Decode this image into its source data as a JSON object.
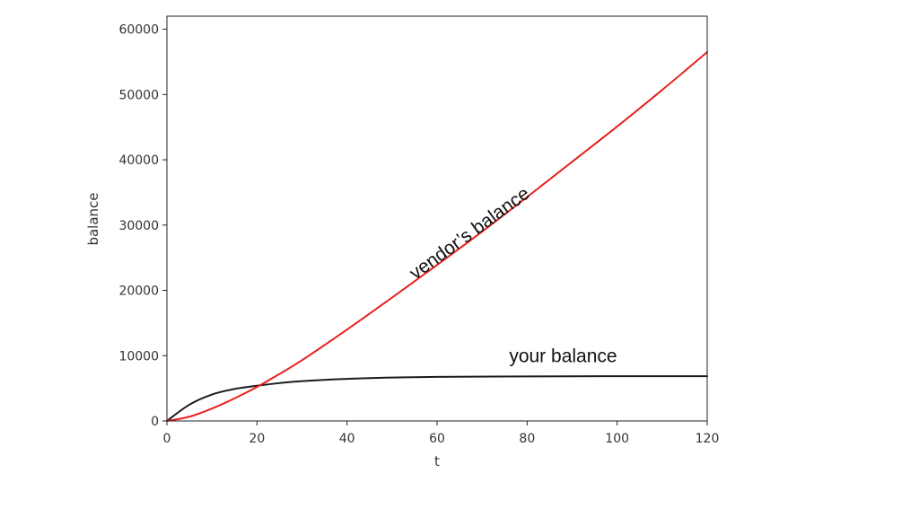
{
  "chart_data": {
    "type": "line",
    "title": "",
    "xlabel": "t",
    "ylabel": "balance",
    "xlim": [
      0,
      120
    ],
    "ylim": [
      0,
      62000
    ],
    "xticks": [
      0,
      20,
      40,
      60,
      80,
      100,
      120
    ],
    "yticks": [
      0,
      10000,
      20000,
      30000,
      40000,
      50000,
      60000
    ],
    "grid": false,
    "legend": "none",
    "series": [
      {
        "name": "your balance",
        "color": "#1a1a1a",
        "x": [
          0,
          5,
          10,
          15,
          20,
          25,
          30,
          40,
          50,
          60,
          80,
          100,
          120
        ],
        "y": [
          0,
          2500,
          4050,
          4900,
          5400,
          5800,
          6100,
          6450,
          6650,
          6750,
          6830,
          6850,
          6850
        ]
      },
      {
        "name": "vendor's balance",
        "color": "#e8201f",
        "x": [
          0,
          5,
          10,
          15,
          20,
          25,
          30,
          40,
          50,
          60,
          70,
          80,
          90,
          100,
          110,
          120
        ],
        "y": [
          0,
          650,
          1900,
          3450,
          5200,
          7200,
          9300,
          14000,
          18900,
          23900,
          29000,
          34300,
          39700,
          45100,
          50700,
          56500
        ]
      }
    ],
    "annotations": [
      {
        "text": "vendor’s balance",
        "x": 68,
        "y": 28000,
        "color": "#111111"
      },
      {
        "text": "your balance",
        "x": 88,
        "y": 9000,
        "color": "#111111"
      }
    ]
  }
}
